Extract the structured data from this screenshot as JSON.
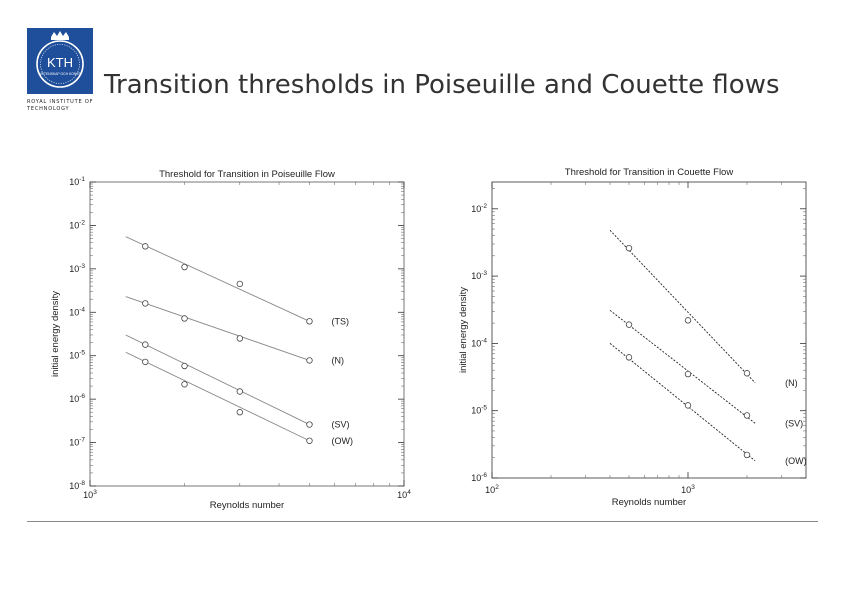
{
  "slide": {
    "title": "Transition thresholds in Poiseuille and Couette flows",
    "logo": {
      "monogram": "KTH",
      "motto": "VETENSKAP OCH KONST",
      "caption": "ROYAL INSTITUTE OF TECHNOLOGY",
      "color": "#1f4f9b"
    }
  },
  "chart_data": [
    {
      "type": "line",
      "title": "Threshold for Transition in Poiseuille Flow",
      "xlabel": "Reynolds number",
      "ylabel": "initial energy density",
      "xscale": "log",
      "yscale": "log",
      "xlim": [
        1000,
        10000
      ],
      "ylim": [
        1e-08,
        0.1
      ],
      "x_ticks": [
        1000,
        10000
      ],
      "x_tick_labels": [
        {
          "base": "10",
          "exp": "3"
        },
        {
          "base": "10",
          "exp": "4"
        }
      ],
      "y_ticks": [
        1e-08,
        1e-07,
        1e-06,
        1e-05,
        0.0001,
        0.001,
        0.01,
        0.1
      ],
      "y_tick_labels": [
        {
          "base": "10",
          "exp": "-8"
        },
        {
          "base": "10",
          "exp": "-7"
        },
        {
          "base": "10",
          "exp": "-6"
        },
        {
          "base": "10",
          "exp": "-5"
        },
        {
          "base": "10",
          "exp": "-4"
        },
        {
          "base": "10",
          "exp": "-3"
        },
        {
          "base": "10",
          "exp": "-2"
        },
        {
          "base": "10",
          "exp": "-1"
        }
      ],
      "grid": false,
      "line_color": "#888888",
      "series": [
        {
          "name": "(TS)",
          "points": [
            [
              1500,
              0.0033
            ],
            [
              2000,
              0.0011
            ],
            [
              3000,
              0.00045
            ],
            [
              5000,
              6.2e-05
            ]
          ],
          "fit": [
            [
              1300,
              0.0055
            ],
            [
              5000,
              6.2e-05
            ]
          ]
        },
        {
          "name": "(N)",
          "points": [
            [
              1500,
              0.00016
            ],
            [
              2000,
              7.2e-05
            ],
            [
              3000,
              2.5e-05
            ],
            [
              5000,
              7.8e-06
            ]
          ],
          "fit": [
            [
              1300,
              0.00023
            ],
            [
              5000,
              7.8e-06
            ]
          ]
        },
        {
          "name": "(SV)",
          "points": [
            [
              1500,
              1.8e-05
            ],
            [
              2000,
              5.8e-06
            ],
            [
              3000,
              1.5e-06
            ],
            [
              5000,
              2.6e-07
            ]
          ],
          "fit": [
            [
              1300,
              3e-05
            ],
            [
              5000,
              2.6e-07
            ]
          ]
        },
        {
          "name": "(OW)",
          "points": [
            [
              1500,
              7.2e-06
            ],
            [
              2000,
              2.2e-06
            ],
            [
              3000,
              5e-07
            ],
            [
              5000,
              1.1e-07
            ]
          ],
          "fit": [
            [
              1300,
              1.2e-05
            ],
            [
              5000,
              1.1e-07
            ]
          ]
        }
      ]
    },
    {
      "type": "line",
      "title": "Threshold for Transition in Couette Flow",
      "xlabel": "Reynolds number",
      "ylabel": "initial energy density",
      "xscale": "log",
      "yscale": "log",
      "xlim": [
        100,
        4000
      ],
      "ylim": [
        1e-06,
        0.025
      ],
      "x_ticks": [
        100,
        1000
      ],
      "x_tick_labels": [
        {
          "base": "10",
          "exp": "2"
        },
        {
          "base": "10",
          "exp": "3"
        }
      ],
      "y_ticks": [
        1e-06,
        1e-05,
        0.0001,
        0.001,
        0.01
      ],
      "y_tick_labels": [
        {
          "base": "10",
          "exp": "-6"
        },
        {
          "base": "10",
          "exp": "-5"
        },
        {
          "base": "10",
          "exp": "-4"
        },
        {
          "base": "10",
          "exp": "-3"
        },
        {
          "base": "10",
          "exp": "-2"
        }
      ],
      "grid": false,
      "line_color": "#222222",
      "series": [
        {
          "name": "(N)",
          "points": [
            [
              500,
              0.0026
            ],
            [
              1000,
              0.00022
            ],
            [
              2000,
              3.6e-05
            ]
          ],
          "fit": [
            [
              400,
              0.0048
            ],
            [
              2200,
              2.6e-05
            ]
          ]
        },
        {
          "name": "(SV)",
          "points": [
            [
              500,
              0.00019
            ],
            [
              1000,
              3.5e-05
            ],
            [
              2000,
              8.5e-06
            ]
          ],
          "fit": [
            [
              400,
              0.00031
            ],
            [
              2200,
              6.5e-06
            ]
          ]
        },
        {
          "name": "(OW)",
          "points": [
            [
              500,
              6.2e-05
            ],
            [
              1000,
              1.2e-05
            ],
            [
              2000,
              2.2e-06
            ]
          ],
          "fit": [
            [
              400,
              0.0001
            ],
            [
              2200,
              1.8e-06
            ]
          ]
        }
      ]
    }
  ]
}
